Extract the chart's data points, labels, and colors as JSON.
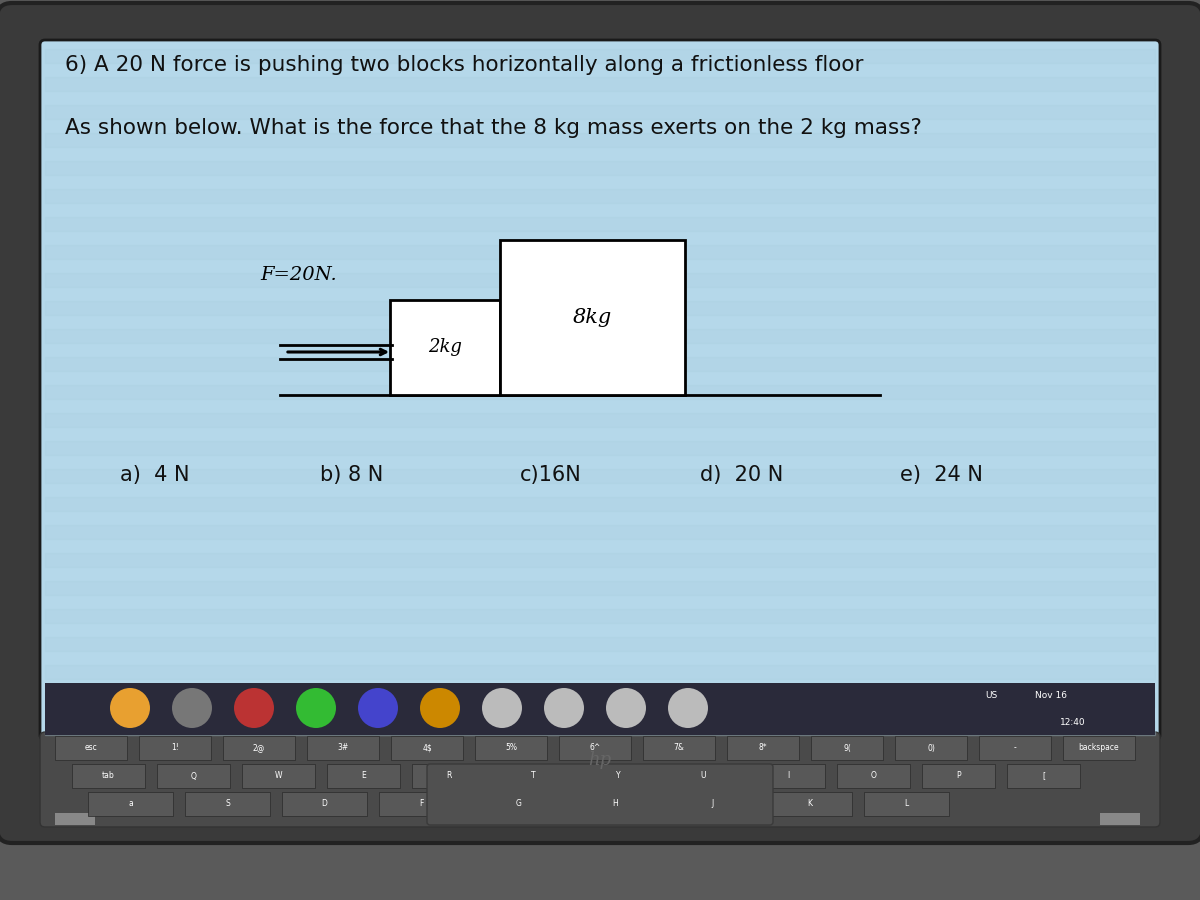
{
  "title_line1": "6) A 20 N force is pushing two blocks horizontally along a frictionless floor",
  "title_line2": "As shown below. What is the force that the 8 kg mass exerts on the 2 kg mass?",
  "force_label": "F=20N.",
  "block1_label": "2kg",
  "block2_label": "8kg",
  "choices": [
    "a)  4 N",
    "b) 8 N",
    "c)16N",
    "d)  20 N",
    "e)  24 N"
  ],
  "choice_x": [
    1.2,
    3.2,
    5.2,
    7.0,
    9.0
  ],
  "text_color": "#111111",
  "screen_bg": "#b5d8ea",
  "laptop_body_color": "#3a3a3a",
  "keyboard_bg": "#4a4a4a",
  "taskbar_color": "#2a2a3a",
  "hp_color": "#666666",
  "block_face": "#ffffff",
  "block_edge": "#000000",
  "floor_color": "#000000",
  "arrow_color": "#000000",
  "taskbar_text_color": "#ffffff"
}
